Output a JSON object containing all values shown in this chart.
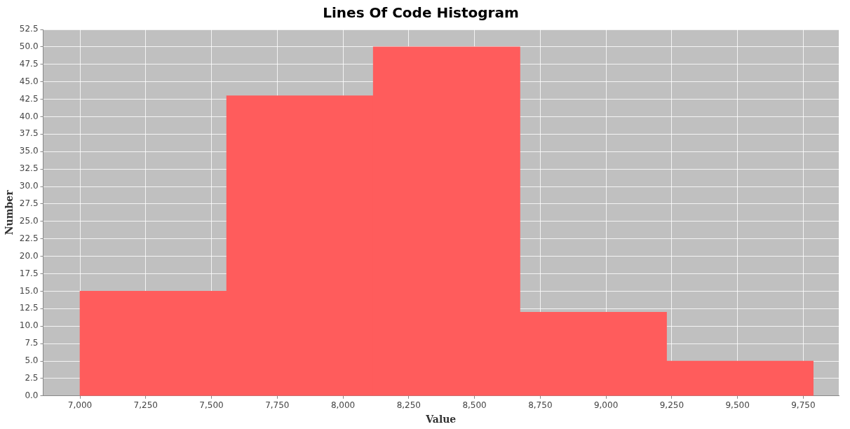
{
  "chart_data": {
    "type": "histogram",
    "title": "Lines Of Code Histogram",
    "xlabel": "Value",
    "ylabel": "Number",
    "bins": [
      7000,
      7558,
      8115,
      8673,
      9230,
      9788
    ],
    "values": [
      15,
      43,
      50,
      12,
      5
    ],
    "color": "#ff5c5c",
    "xlim": [
      6860,
      9885
    ],
    "xticks": [
      {
        "value": 7000,
        "label": "7,000"
      },
      {
        "value": 7250,
        "label": "7,250"
      },
      {
        "value": 7500,
        "label": "7,500"
      },
      {
        "value": 7750,
        "label": "7,750"
      },
      {
        "value": 8000,
        "label": "8,000"
      },
      {
        "value": 8250,
        "label": "8,250"
      },
      {
        "value": 8500,
        "label": "8,500"
      },
      {
        "value": 8750,
        "label": "8,750"
      },
      {
        "value": 9000,
        "label": "9,000"
      },
      {
        "value": 9250,
        "label": "9,250"
      },
      {
        "value": 9500,
        "label": "9,500"
      },
      {
        "value": 9750,
        "label": "9,750"
      }
    ],
    "ylim": [
      0,
      52.5
    ],
    "yticks": [
      {
        "value": 0,
        "label": "0.0"
      },
      {
        "value": 2.5,
        "label": "2.5"
      },
      {
        "value": 5,
        "label": "5.0"
      },
      {
        "value": 7.5,
        "label": "7.5"
      },
      {
        "value": 10,
        "label": "10.0"
      },
      {
        "value": 12.5,
        "label": "12.5"
      },
      {
        "value": 15,
        "label": "15.0"
      },
      {
        "value": 17.5,
        "label": "17.5"
      },
      {
        "value": 20,
        "label": "20.0"
      },
      {
        "value": 22.5,
        "label": "22.5"
      },
      {
        "value": 25,
        "label": "25.0"
      },
      {
        "value": 27.5,
        "label": "27.5"
      },
      {
        "value": 30,
        "label": "30.0"
      },
      {
        "value": 32.5,
        "label": "32.5"
      },
      {
        "value": 35,
        "label": "35.0"
      },
      {
        "value": 37.5,
        "label": "37.5"
      },
      {
        "value": 40,
        "label": "40.0"
      },
      {
        "value": 42.5,
        "label": "42.5"
      },
      {
        "value": 45,
        "label": "45.0"
      },
      {
        "value": 47.5,
        "label": "47.5"
      },
      {
        "value": 50,
        "label": "50.0"
      },
      {
        "value": 52.5,
        "label": "52.5"
      }
    ],
    "grid": true
  }
}
